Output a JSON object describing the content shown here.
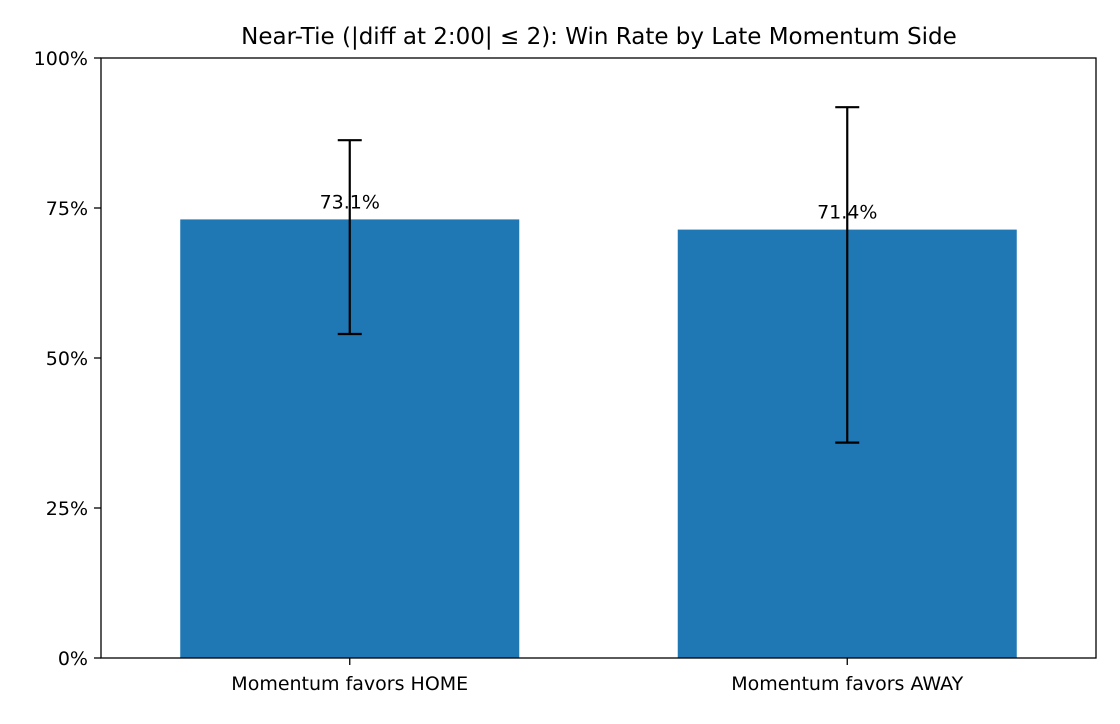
{
  "chart_data": {
    "type": "bar",
    "title": "Near-Tie (|diff at 2:00| ≤ 2): Win Rate by Late Momentum Side",
    "xlabel": "",
    "ylabel": "",
    "categories": [
      "Momentum favors HOME",
      "Momentum favors AWAY"
    ],
    "values": [
      73.1,
      71.4
    ],
    "value_labels": [
      "73.1%",
      "71.4%"
    ],
    "error_bars": [
      {
        "low": 54.0,
        "high": 86.3
      },
      {
        "low": 35.9,
        "high": 91.8
      }
    ],
    "ylim": [
      0,
      100
    ],
    "yticks": [
      0,
      25,
      50,
      75,
      100
    ],
    "ytick_labels": [
      "0%",
      "25%",
      "50%",
      "75%",
      "100%"
    ],
    "bar_color": "#1f77b4",
    "error_color": "#000000",
    "grid": false,
    "legend": "none"
  }
}
